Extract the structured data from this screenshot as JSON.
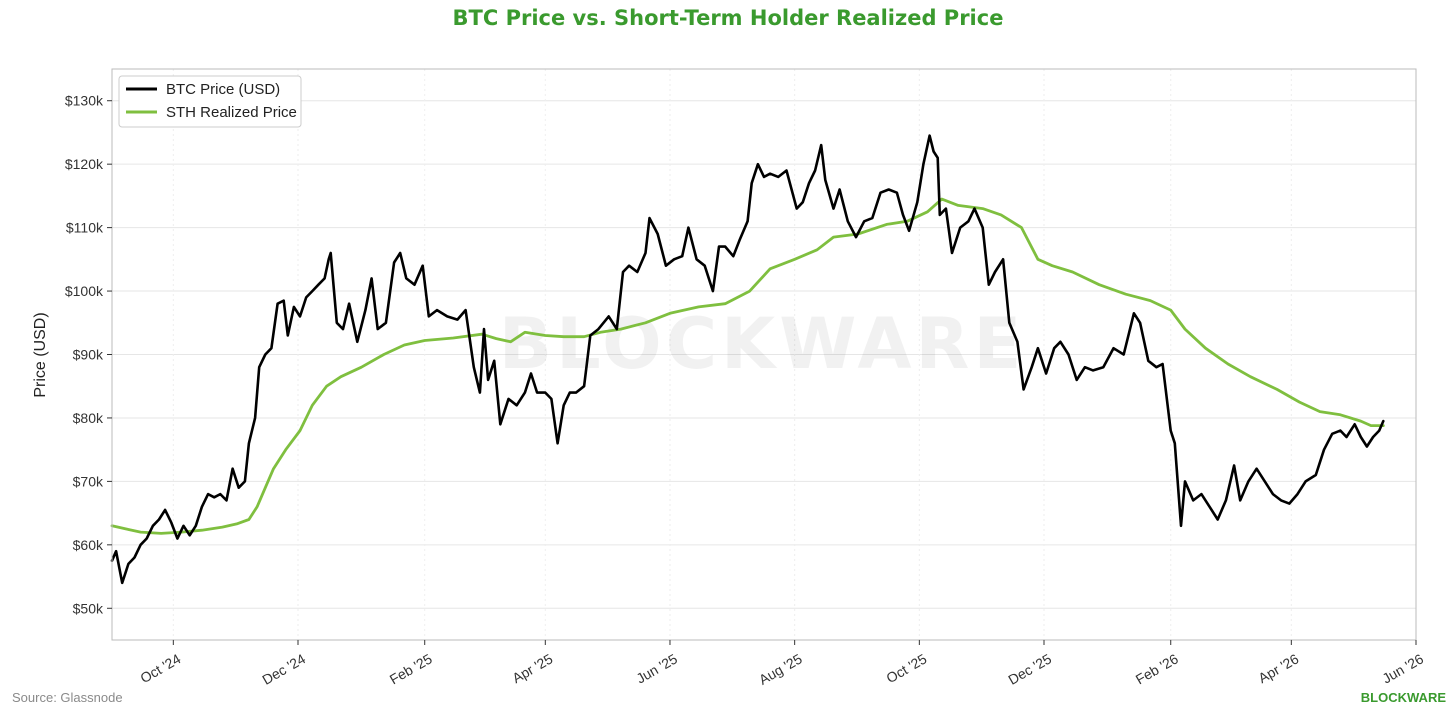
{
  "colors": {
    "title": "#3a9a2e",
    "btc": "#000000",
    "sth": "#7fbf3f",
    "brand": "#3a9a2e",
    "grid": "#e6e6e6"
  },
  "source": "Source: Glassnode",
  "brand": "BLOCKWARE",
  "watermark": "BLOCKWARE",
  "chart_data": {
    "type": "line",
    "title": "BTC Price vs. Short-Term Holder Realized Price",
    "xlabel": "",
    "ylabel": "Price (USD)",
    "xlim": [
      "2024-09-01",
      "2026-06-01"
    ],
    "ylim": [
      45000,
      135000
    ],
    "x_ticks": [
      {
        "date": "2024-10-01",
        "label": "Oct '24"
      },
      {
        "date": "2024-12-01",
        "label": "Dec '24"
      },
      {
        "date": "2025-02-01",
        "label": "Feb '25"
      },
      {
        "date": "2025-04-01",
        "label": "Apr '25"
      },
      {
        "date": "2025-06-01",
        "label": "Jun '25"
      },
      {
        "date": "2025-08-01",
        "label": "Aug '25"
      },
      {
        "date": "2025-10-01",
        "label": "Oct '25"
      },
      {
        "date": "2025-12-01",
        "label": "Dec '25"
      },
      {
        "date": "2026-02-01",
        "label": "Feb '26"
      },
      {
        "date": "2026-04-01",
        "label": "Apr '26"
      },
      {
        "date": "2026-06-01",
        "label": "Jun '26"
      }
    ],
    "y_ticks": [
      {
        "value": 50000,
        "label": "$50k"
      },
      {
        "value": 60000,
        "label": "$60k"
      },
      {
        "value": 70000,
        "label": "$70k"
      },
      {
        "value": 80000,
        "label": "$80k"
      },
      {
        "value": 90000,
        "label": "$90k"
      },
      {
        "value": 100000,
        "label": "$100k"
      },
      {
        "value": 110000,
        "label": "$110k"
      },
      {
        "value": 120000,
        "label": "$120k"
      },
      {
        "value": 130000,
        "label": "$130k"
      }
    ],
    "grid": true,
    "legend_position": "top-left",
    "series": [
      {
        "name": "BTC Price (USD)",
        "color": "#000000",
        "points": [
          [
            "2024-09-01",
            57500
          ],
          [
            "2024-09-03",
            59000
          ],
          [
            "2024-09-06",
            54000
          ],
          [
            "2024-09-09",
            57000
          ],
          [
            "2024-09-12",
            58000
          ],
          [
            "2024-09-15",
            60000
          ],
          [
            "2024-09-18",
            61000
          ],
          [
            "2024-09-21",
            63000
          ],
          [
            "2024-09-24",
            64000
          ],
          [
            "2024-09-27",
            65500
          ],
          [
            "2024-09-30",
            63500
          ],
          [
            "2024-10-03",
            61000
          ],
          [
            "2024-10-06",
            63000
          ],
          [
            "2024-10-09",
            61500
          ],
          [
            "2024-10-12",
            63000
          ],
          [
            "2024-10-15",
            66000
          ],
          [
            "2024-10-18",
            68000
          ],
          [
            "2024-10-21",
            67500
          ],
          [
            "2024-10-24",
            68000
          ],
          [
            "2024-10-27",
            67000
          ],
          [
            "2024-10-30",
            72000
          ],
          [
            "2024-11-02",
            69000
          ],
          [
            "2024-11-05",
            70000
          ],
          [
            "2024-11-07",
            76000
          ],
          [
            "2024-11-10",
            80000
          ],
          [
            "2024-11-12",
            88000
          ],
          [
            "2024-11-15",
            90000
          ],
          [
            "2024-11-18",
            91000
          ],
          [
            "2024-11-21",
            98000
          ],
          [
            "2024-11-24",
            98500
          ],
          [
            "2024-11-26",
            93000
          ],
          [
            "2024-11-29",
            97500
          ],
          [
            "2024-12-02",
            96000
          ],
          [
            "2024-12-05",
            99000
          ],
          [
            "2024-12-08",
            100000
          ],
          [
            "2024-12-11",
            101000
          ],
          [
            "2024-12-14",
            102000
          ],
          [
            "2024-12-16",
            105000
          ],
          [
            "2024-12-17",
            106000
          ],
          [
            "2024-12-20",
            95000
          ],
          [
            "2024-12-23",
            94000
          ],
          [
            "2024-12-26",
            98000
          ],
          [
            "2024-12-30",
            92000
          ],
          [
            "2025-01-03",
            97000
          ],
          [
            "2025-01-06",
            102000
          ],
          [
            "2025-01-09",
            94000
          ],
          [
            "2025-01-13",
            95000
          ],
          [
            "2025-01-17",
            104500
          ],
          [
            "2025-01-20",
            106000
          ],
          [
            "2025-01-23",
            102000
          ],
          [
            "2025-01-27",
            101000
          ],
          [
            "2025-01-31",
            104000
          ],
          [
            "2025-02-03",
            96000
          ],
          [
            "2025-02-07",
            97000
          ],
          [
            "2025-02-12",
            96000
          ],
          [
            "2025-02-17",
            95500
          ],
          [
            "2025-02-21",
            97000
          ],
          [
            "2025-02-25",
            88000
          ],
          [
            "2025-02-28",
            84000
          ],
          [
            "2025-03-02",
            94000
          ],
          [
            "2025-03-04",
            86000
          ],
          [
            "2025-03-07",
            89000
          ],
          [
            "2025-03-10",
            79000
          ],
          [
            "2025-03-14",
            83000
          ],
          [
            "2025-03-18",
            82000
          ],
          [
            "2025-03-22",
            84000
          ],
          [
            "2025-03-25",
            87000
          ],
          [
            "2025-03-28",
            84000
          ],
          [
            "2025-04-01",
            84000
          ],
          [
            "2025-04-04",
            83000
          ],
          [
            "2025-04-07",
            76000
          ],
          [
            "2025-04-10",
            82000
          ],
          [
            "2025-04-13",
            84000
          ],
          [
            "2025-04-16",
            84000
          ],
          [
            "2025-04-20",
            85000
          ],
          [
            "2025-04-23",
            93000
          ],
          [
            "2025-04-27",
            94000
          ],
          [
            "2025-05-02",
            96000
          ],
          [
            "2025-05-06",
            94000
          ],
          [
            "2025-05-09",
            103000
          ],
          [
            "2025-05-12",
            104000
          ],
          [
            "2025-05-16",
            103000
          ],
          [
            "2025-05-20",
            106000
          ],
          [
            "2025-05-22",
            111500
          ],
          [
            "2025-05-26",
            109000
          ],
          [
            "2025-05-30",
            104000
          ],
          [
            "2025-06-03",
            105000
          ],
          [
            "2025-06-07",
            105500
          ],
          [
            "2025-06-10",
            110000
          ],
          [
            "2025-06-14",
            105000
          ],
          [
            "2025-06-18",
            104000
          ],
          [
            "2025-06-22",
            100000
          ],
          [
            "2025-06-25",
            107000
          ],
          [
            "2025-06-28",
            107000
          ],
          [
            "2025-07-02",
            105500
          ],
          [
            "2025-07-05",
            108000
          ],
          [
            "2025-07-09",
            111000
          ],
          [
            "2025-07-11",
            117000
          ],
          [
            "2025-07-14",
            120000
          ],
          [
            "2025-07-17",
            118000
          ],
          [
            "2025-07-20",
            118500
          ],
          [
            "2025-07-24",
            118000
          ],
          [
            "2025-07-28",
            119000
          ],
          [
            "2025-08-02",
            113000
          ],
          [
            "2025-08-05",
            114000
          ],
          [
            "2025-08-08",
            117000
          ],
          [
            "2025-08-11",
            119000
          ],
          [
            "2025-08-14",
            123000
          ],
          [
            "2025-08-16",
            117500
          ],
          [
            "2025-08-20",
            113000
          ],
          [
            "2025-08-23",
            116000
          ],
          [
            "2025-08-27",
            111000
          ],
          [
            "2025-08-31",
            108500
          ],
          [
            "2025-09-04",
            111000
          ],
          [
            "2025-09-08",
            111500
          ],
          [
            "2025-09-12",
            115500
          ],
          [
            "2025-09-16",
            116000
          ],
          [
            "2025-09-20",
            115500
          ],
          [
            "2025-09-23",
            112000
          ],
          [
            "2025-09-26",
            109500
          ],
          [
            "2025-09-30",
            114000
          ],
          [
            "2025-10-03",
            120000
          ],
          [
            "2025-10-06",
            124500
          ],
          [
            "2025-10-08",
            122000
          ],
          [
            "2025-10-10",
            121000
          ],
          [
            "2025-10-11",
            112000
          ],
          [
            "2025-10-14",
            113000
          ],
          [
            "2025-10-17",
            106000
          ],
          [
            "2025-10-21",
            110000
          ],
          [
            "2025-10-25",
            111000
          ],
          [
            "2025-10-28",
            113000
          ],
          [
            "2025-11-01",
            110000
          ],
          [
            "2025-11-04",
            101000
          ],
          [
            "2025-11-07",
            103000
          ],
          [
            "2025-11-11",
            105000
          ],
          [
            "2025-11-14",
            95000
          ],
          [
            "2025-11-18",
            92000
          ],
          [
            "2025-11-21",
            84500
          ],
          [
            "2025-11-25",
            88000
          ],
          [
            "2025-11-28",
            91000
          ],
          [
            "2025-12-02",
            87000
          ],
          [
            "2025-12-06",
            91000
          ],
          [
            "2025-12-09",
            92000
          ],
          [
            "2025-12-13",
            90000
          ],
          [
            "2025-12-17",
            86000
          ],
          [
            "2025-12-21",
            88000
          ],
          [
            "2025-12-25",
            87500
          ],
          [
            "2025-12-30",
            88000
          ],
          [
            "2026-01-04",
            91000
          ],
          [
            "2026-01-09",
            90000
          ],
          [
            "2026-01-14",
            96500
          ],
          [
            "2026-01-17",
            95000
          ],
          [
            "2026-01-21",
            89000
          ],
          [
            "2026-01-25",
            88000
          ],
          [
            "2026-01-28",
            88500
          ],
          [
            "2026-02-01",
            78000
          ],
          [
            "2026-02-03",
            76000
          ],
          [
            "2026-02-06",
            63000
          ],
          [
            "2026-02-08",
            70000
          ],
          [
            "2026-02-12",
            67000
          ],
          [
            "2026-02-16",
            68000
          ],
          [
            "2026-02-20",
            66000
          ],
          [
            "2026-02-24",
            64000
          ],
          [
            "2026-02-28",
            67000
          ],
          [
            "2026-03-04",
            72500
          ],
          [
            "2026-03-07",
            67000
          ],
          [
            "2026-03-11",
            70000
          ],
          [
            "2026-03-15",
            72000
          ],
          [
            "2026-03-19",
            70000
          ],
          [
            "2026-03-23",
            68000
          ],
          [
            "2026-03-27",
            67000
          ],
          [
            "2026-03-31",
            66500
          ],
          [
            "2026-04-04",
            68000
          ],
          [
            "2026-04-08",
            70000
          ],
          [
            "2026-04-13",
            71000
          ],
          [
            "2026-04-17",
            75000
          ],
          [
            "2026-04-21",
            77500
          ],
          [
            "2026-04-25",
            78000
          ],
          [
            "2026-04-28",
            77000
          ],
          [
            "2026-05-02",
            79000
          ],
          [
            "2026-05-05",
            77000
          ],
          [
            "2026-05-08",
            75500
          ],
          [
            "2026-05-11",
            77000
          ],
          [
            "2026-05-14",
            78000
          ],
          [
            "2026-05-16",
            79500
          ]
        ]
      },
      {
        "name": "STH Realized Price",
        "color": "#7fbf3f",
        "points": [
          [
            "2024-09-01",
            63000
          ],
          [
            "2024-09-08",
            62500
          ],
          [
            "2024-09-15",
            62000
          ],
          [
            "2024-09-25",
            61800
          ],
          [
            "2024-10-05",
            62000
          ],
          [
            "2024-10-15",
            62300
          ],
          [
            "2024-10-25",
            62800
          ],
          [
            "2024-11-01",
            63300
          ],
          [
            "2024-11-07",
            64000
          ],
          [
            "2024-11-11",
            66000
          ],
          [
            "2024-11-15",
            69000
          ],
          [
            "2024-11-19",
            72000
          ],
          [
            "2024-11-25",
            75000
          ],
          [
            "2024-12-02",
            78000
          ],
          [
            "2024-12-08",
            82000
          ],
          [
            "2024-12-15",
            85000
          ],
          [
            "2024-12-22",
            86500
          ],
          [
            "2025-01-01",
            88000
          ],
          [
            "2025-01-12",
            90000
          ],
          [
            "2025-01-22",
            91500
          ],
          [
            "2025-02-01",
            92200
          ],
          [
            "2025-02-15",
            92600
          ],
          [
            "2025-03-01",
            93200
          ],
          [
            "2025-03-08",
            92500
          ],
          [
            "2025-03-15",
            92000
          ],
          [
            "2025-03-22",
            93500
          ],
          [
            "2025-04-01",
            93000
          ],
          [
            "2025-04-10",
            92800
          ],
          [
            "2025-04-20",
            92800
          ],
          [
            "2025-04-28",
            93500
          ],
          [
            "2025-05-08",
            94000
          ],
          [
            "2025-05-20",
            95000
          ],
          [
            "2025-06-01",
            96500
          ],
          [
            "2025-06-15",
            97500
          ],
          [
            "2025-06-28",
            98000
          ],
          [
            "2025-07-10",
            100000
          ],
          [
            "2025-07-20",
            103500
          ],
          [
            "2025-08-01",
            105000
          ],
          [
            "2025-08-12",
            106500
          ],
          [
            "2025-08-20",
            108500
          ],
          [
            "2025-09-01",
            109000
          ],
          [
            "2025-09-15",
            110500
          ],
          [
            "2025-09-25",
            111000
          ],
          [
            "2025-10-05",
            112500
          ],
          [
            "2025-10-12",
            114500
          ],
          [
            "2025-10-20",
            113500
          ],
          [
            "2025-11-01",
            113000
          ],
          [
            "2025-11-10",
            112000
          ],
          [
            "2025-11-20",
            110000
          ],
          [
            "2025-11-28",
            105000
          ],
          [
            "2025-12-05",
            104000
          ],
          [
            "2025-12-15",
            103000
          ],
          [
            "2025-12-28",
            101000
          ],
          [
            "2026-01-10",
            99500
          ],
          [
            "2026-01-22",
            98500
          ],
          [
            "2026-02-01",
            97000
          ],
          [
            "2026-02-08",
            94000
          ],
          [
            "2026-02-18",
            91000
          ],
          [
            "2026-03-01",
            88500
          ],
          [
            "2026-03-12",
            86500
          ],
          [
            "2026-03-25",
            84500
          ],
          [
            "2026-04-05",
            82500
          ],
          [
            "2026-04-15",
            81000
          ],
          [
            "2026-04-25",
            80500
          ],
          [
            "2026-05-05",
            79500
          ],
          [
            "2026-05-10",
            78800
          ],
          [
            "2026-05-16",
            78800
          ]
        ]
      }
    ]
  }
}
